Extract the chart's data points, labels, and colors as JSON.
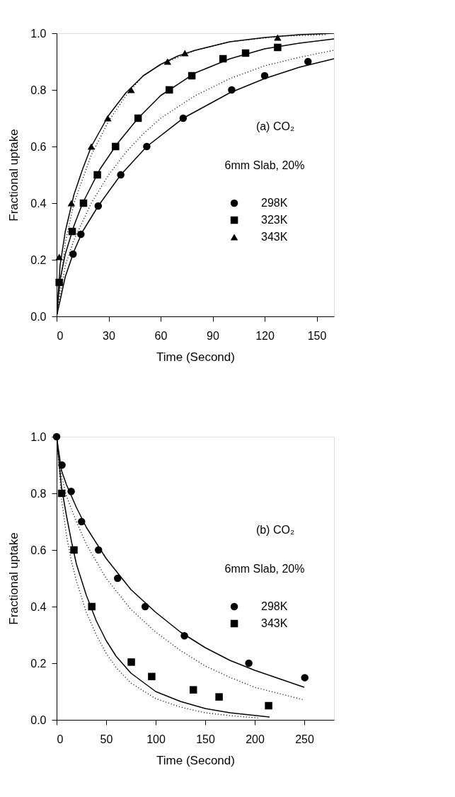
{
  "chart_data": [
    {
      "type": "scatter",
      "xlabel": "Time (Second)",
      "ylabel": "Fractional uptake",
      "xlim": [
        0,
        160
      ],
      "xticks": [
        0,
        30,
        60,
        90,
        120,
        150
      ],
      "ylim": [
        0,
        1
      ],
      "yticks": [
        {
          "value": 0,
          "label": "0.0"
        },
        {
          "value": 0.2,
          "label": "0.2"
        },
        {
          "value": 0.4,
          "label": "0.4"
        },
        {
          "value": 0.6,
          "label": "0.6"
        },
        {
          "value": 0.8,
          "label": "0.8"
        },
        {
          "value": 1,
          "label": "1.0"
        }
      ],
      "grid": false,
      "legend": "right",
      "annotations": [
        "(a) CO₂",
        "6mm Slab, 20%"
      ],
      "series": [
        {
          "type": "line",
          "color": "#000000",
          "line_style": "solid",
          "x": [
            0,
            2,
            5,
            10,
            15,
            20,
            30,
            40,
            50,
            60,
            70,
            80,
            100,
            120,
            140,
            160
          ],
          "values": [
            0,
            0.18,
            0.3,
            0.43,
            0.52,
            0.6,
            0.71,
            0.79,
            0.85,
            0.89,
            0.92,
            0.94,
            0.97,
            0.985,
            0.995,
            1.0
          ]
        },
        {
          "type": "line",
          "color": "#000000",
          "line_style": "dotted",
          "x": [
            0,
            5,
            10,
            20,
            30,
            40,
            50,
            60,
            80,
            100,
            130,
            155
          ],
          "values": [
            0,
            0.26,
            0.4,
            0.57,
            0.69,
            0.78,
            0.85,
            0.89,
            0.94,
            0.97,
            0.99,
            0.995
          ]
        },
        {
          "type": "line",
          "color": "#000000",
          "line_style": "solid",
          "x": [
            0,
            2,
            5,
            10,
            15,
            20,
            25,
            35,
            47,
            60,
            80,
            100,
            120,
            140,
            160
          ],
          "values": [
            0,
            0.13,
            0.22,
            0.32,
            0.4,
            0.46,
            0.52,
            0.61,
            0.7,
            0.78,
            0.86,
            0.91,
            0.945,
            0.965,
            0.98
          ]
        },
        {
          "type": "line",
          "color": "#000000",
          "line_style": "dotted",
          "x": [
            0,
            5,
            10,
            20,
            30,
            40,
            50,
            60,
            80,
            100,
            120,
            140,
            160
          ],
          "values": [
            0,
            0.18,
            0.27,
            0.4,
            0.5,
            0.58,
            0.645,
            0.7,
            0.78,
            0.84,
            0.885,
            0.915,
            0.94
          ]
        },
        {
          "type": "line",
          "color": "#000000",
          "line_style": "solid",
          "x": [
            0,
            5,
            10,
            15,
            24,
            37,
            52,
            73,
            100,
            120,
            140,
            160
          ],
          "values": [
            0,
            0.14,
            0.23,
            0.3,
            0.39,
            0.5,
            0.6,
            0.7,
            0.79,
            0.84,
            0.88,
            0.91
          ]
        },
        {
          "name": "298K",
          "color": "#000000",
          "marker": "circle",
          "x": [
            9.5,
            14,
            24,
            37,
            52,
            73,
            101,
            120,
            145
          ],
          "values": [
            0.22,
            0.29,
            0.39,
            0.5,
            0.6,
            0.7,
            0.8,
            0.85,
            0.9
          ]
        },
        {
          "name": "323K",
          "color": "#000000",
          "marker": "square",
          "x": [
            1.5,
            9,
            15.5,
            23.5,
            34,
            47,
            65,
            78,
            96,
            109,
            127.5
          ],
          "values": [
            0.12,
            0.3,
            0.4,
            0.5,
            0.6,
            0.7,
            0.8,
            0.85,
            0.91,
            0.93,
            0.95
          ]
        },
        {
          "name": "343K",
          "color": "#000000",
          "marker": "triangle",
          "x": [
            1.5,
            8.5,
            20,
            29.5,
            43,
            64,
            74,
            127.5
          ],
          "values": [
            0.21,
            0.4,
            0.6,
            0.7,
            0.8,
            0.9,
            0.93,
            0.985
          ]
        }
      ]
    },
    {
      "type": "scatter",
      "xlabel": "Time (Second)",
      "ylabel": "Fractional uptake",
      "xlim": [
        0,
        280
      ],
      "xticks": [
        0,
        50,
        100,
        150,
        200,
        250
      ],
      "ylim": [
        0,
        1
      ],
      "yticks": [
        {
          "value": 0,
          "label": "0.0"
        },
        {
          "value": 0.2,
          "label": "0.2"
        },
        {
          "value": 0.4,
          "label": "0.4"
        },
        {
          "value": 0.6,
          "label": "0.6"
        },
        {
          "value": 0.8,
          "label": "0.8"
        },
        {
          "value": 1,
          "label": "1.0"
        }
      ],
      "grid": false,
      "legend": "right",
      "annotations": [
        "(b) CO₂",
        "6mm Slab, 20%"
      ],
      "series": [
        {
          "type": "line",
          "color": "#000000",
          "line_style": "solid",
          "x": [
            0,
            5,
            10,
            20,
            30,
            50,
            75,
            100,
            125,
            150,
            175,
            200,
            225,
            250
          ],
          "values": [
            1,
            0.88,
            0.83,
            0.75,
            0.68,
            0.57,
            0.46,
            0.38,
            0.31,
            0.255,
            0.21,
            0.175,
            0.145,
            0.115
          ]
        },
        {
          "type": "line",
          "color": "#000000",
          "line_style": "dotted",
          "x": [
            0,
            5,
            10,
            20,
            30,
            50,
            75,
            100,
            125,
            150,
            175,
            200,
            250
          ],
          "values": [
            1,
            0.86,
            0.79,
            0.7,
            0.62,
            0.5,
            0.39,
            0.31,
            0.245,
            0.19,
            0.15,
            0.115,
            0.07
          ]
        },
        {
          "type": "line",
          "color": "#000000",
          "line_style": "solid",
          "x": [
            0,
            5,
            10,
            15,
            20,
            30,
            40,
            50,
            60,
            75,
            100,
            125,
            150,
            175,
            215
          ],
          "values": [
            1,
            0.82,
            0.72,
            0.63,
            0.55,
            0.44,
            0.35,
            0.28,
            0.225,
            0.165,
            0.1,
            0.065,
            0.04,
            0.025,
            0.01
          ]
        },
        {
          "type": "line",
          "color": "#000000",
          "line_style": "dotted",
          "x": [
            0,
            5,
            10,
            15,
            20,
            30,
            40,
            50,
            60,
            75,
            100,
            125,
            150,
            175,
            205
          ],
          "values": [
            1,
            0.78,
            0.65,
            0.56,
            0.49,
            0.38,
            0.3,
            0.235,
            0.185,
            0.13,
            0.075,
            0.045,
            0.025,
            0.015,
            0.006
          ]
        },
        {
          "name": "298K",
          "color": "#000000",
          "marker": "circle",
          "x": [
            0,
            5.4,
            14.7,
            25.2,
            42.3,
            61.6,
            89.4,
            129,
            194,
            250.5
          ],
          "values": [
            1.0,
            0.9,
            0.807,
            0.7,
            0.6,
            0.5,
            0.4,
            0.297,
            0.2,
            0.149
          ]
        },
        {
          "name": "343K",
          "color": "#000000",
          "marker": "square",
          "x": [
            5.1,
            17.5,
            35.5,
            75.4,
            96,
            138,
            164,
            214
          ],
          "values": [
            0.8,
            0.6,
            0.4,
            0.204,
            0.153,
            0.106,
            0.081,
            0.05
          ]
        }
      ]
    }
  ]
}
